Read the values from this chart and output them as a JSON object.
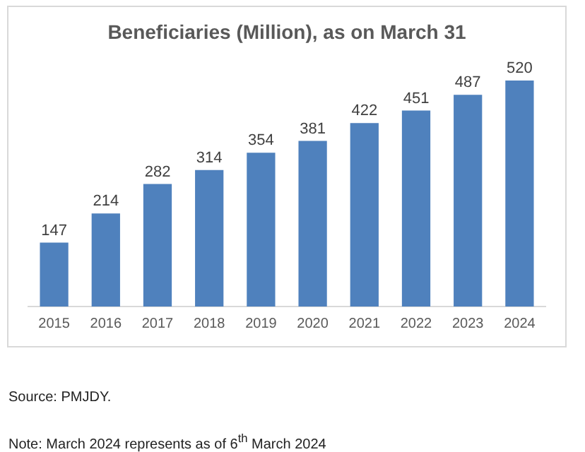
{
  "chart_data": {
    "type": "bar",
    "title": "Beneficiaries (Million), as on March 31",
    "categories": [
      "2015",
      "2016",
      "2017",
      "2018",
      "2019",
      "2020",
      "2021",
      "2022",
      "2023",
      "2024"
    ],
    "values": [
      147,
      214,
      282,
      314,
      354,
      381,
      422,
      451,
      487,
      520
    ],
    "color": "#4f81bd",
    "data_labels": true,
    "grid": false,
    "legend": false,
    "tick_labels": "x",
    "annotations": [
      "Source: PMJDY.",
      "Note: March 2024 represents as of 6$^{th}$ March 2024"
    ]
  }
}
